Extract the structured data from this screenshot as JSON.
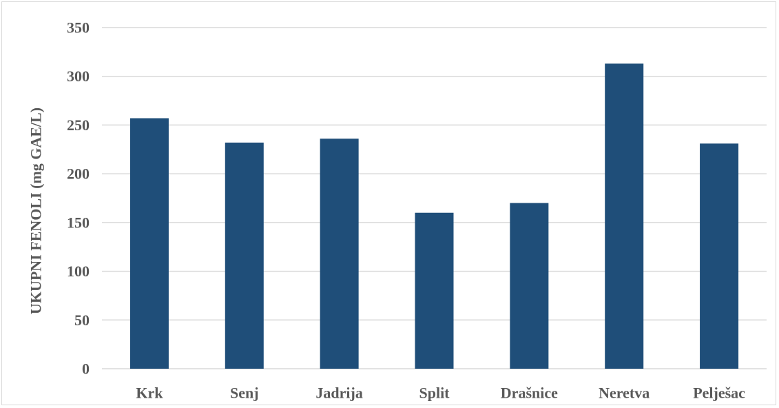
{
  "chart_data": {
    "type": "bar",
    "title": "",
    "xlabel": "",
    "ylabel": "UKUPNI FENOLI (mg  GAE/L)",
    "categories": [
      "Krk",
      "Senj",
      "Jadrija",
      "Split",
      "Drašnice",
      "Neretva",
      "Pelješac"
    ],
    "values": [
      257,
      232,
      236,
      160,
      170,
      313,
      231
    ],
    "ylim": [
      0,
      350
    ],
    "yticks": [
      0,
      50,
      100,
      150,
      200,
      250,
      300,
      350
    ],
    "grid": true,
    "legend": "none",
    "bar_color": "#1f4e79",
    "grid_color": "#d9d9d9"
  }
}
